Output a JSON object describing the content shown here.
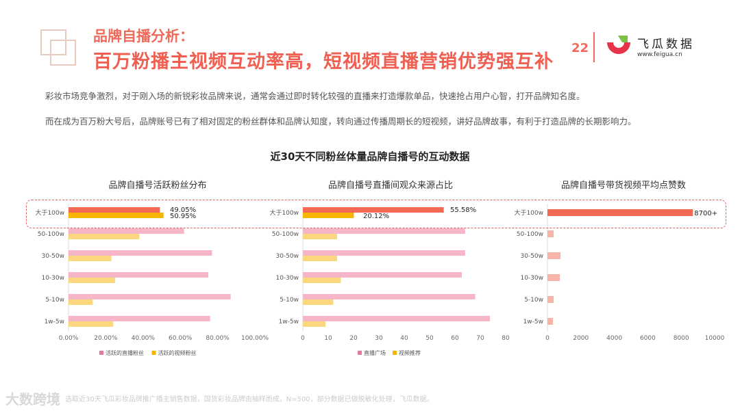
{
  "header": {
    "subtitle": "品牌自播分析：",
    "title": "百万粉播主视频互动率高，短视频直播营销优势强互补",
    "page_number": "22",
    "logo_name": "飞瓜数据",
    "logo_url": "www.feigua.cn"
  },
  "paragraphs": [
    "彩妆市场竞争激烈，对于刚入场的新锐彩妆品牌来说，通常会通过即时转化较强的直播来打造爆款单品，快速抢占用户心智，打开品牌知名度。",
    "而在成为百万粉大号后，品牌账号已有了相对固定的粉丝群体和品牌认知度，转向通过传播周期长的短视频，讲好品牌故事，有利于打造品牌的长期影响力。"
  ],
  "chart_heading": "近30天不同粉丝体量品牌自播号的互动数据",
  "footer": "选取近30天飞瓜彩妆品牌推广播主销售数据，国货彩妆品牌由抽样而成，N=500，部分数据已做脱敏化处理，飞瓜数据。",
  "watermark": "大数跨境",
  "colors": {
    "accent": "#ef5f52",
    "highlight_red": "#f26a55",
    "highlight_yellow": "#f7b500",
    "pink": "#f7b6c8",
    "light_yellow": "#fbd77f",
    "salmon": "#f8b4a8"
  },
  "chart_data": [
    {
      "type": "bar",
      "orientation": "horizontal",
      "title": "品牌自播号活跃粉丝分布",
      "categories": [
        "大于100w",
        "50-100w",
        "30-50w",
        "10-30w",
        "5-10w",
        "1w-5w"
      ],
      "series": [
        {
          "name": "活跃的直播粉丝",
          "values": [
            49.05,
            62,
            77,
            75,
            87,
            76
          ]
        },
        {
          "name": "活跃的视频粉丝",
          "values": [
            50.95,
            38,
            23,
            25,
            13,
            24
          ]
        }
      ],
      "data_labels": [
        "49.05%",
        "50.95%"
      ],
      "xlim": [
        0,
        100
      ],
      "xticks": [
        "0.00%",
        "20.00%",
        "40.00%",
        "60.00%",
        "80.00%",
        "100.00%"
      ],
      "legend": "bottom"
    },
    {
      "type": "bar",
      "orientation": "horizontal",
      "title": "品牌自播号直播间观众来源占比",
      "categories": [
        "大于100w",
        "50-100w",
        "30-50w",
        "10-30w",
        "5-10w",
        "1w-5w"
      ],
      "series": [
        {
          "name": "直播广场",
          "values": [
            55.58,
            64,
            64,
            62.7,
            68,
            73.8
          ]
        },
        {
          "name": "视频推荐",
          "values": [
            20.12,
            13.5,
            13.5,
            15,
            12,
            9
          ]
        }
      ],
      "data_labels": [
        "55.58%",
        "20.12%"
      ],
      "xlim": [
        0,
        80
      ],
      "xticks": [
        "0",
        "10",
        "20",
        "30",
        "40",
        "50",
        "60",
        "70",
        "80"
      ],
      "legend": "bottom"
    },
    {
      "type": "bar",
      "orientation": "horizontal",
      "title": "品牌自播号带货视频平均点赞数",
      "categories": [
        "大于100w",
        "50-100w",
        "30-50w",
        "10-30w",
        "5-10w",
        "1w-5w"
      ],
      "series": [
        {
          "values": [
            8700,
            370,
            780,
            740,
            370,
            330
          ]
        }
      ],
      "data_labels": [
        "8700+"
      ],
      "xlim": [
        0,
        10000
      ],
      "xticks": [
        "0",
        "2000",
        "4000",
        "6000",
        "8000",
        "10000"
      ]
    }
  ]
}
